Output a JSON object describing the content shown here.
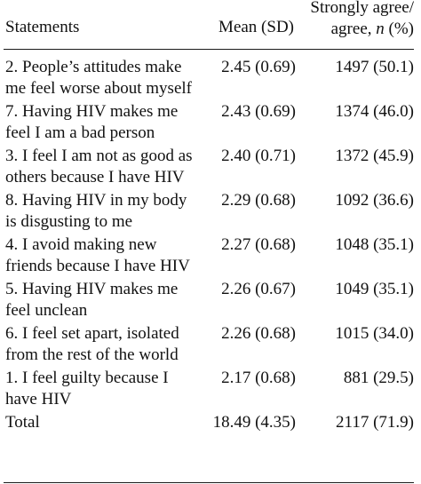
{
  "table": {
    "headers": {
      "statements": "Statements",
      "mean": "Mean (SD)",
      "agree_line1": "Strongly agree/",
      "agree_line2_prefix": "agree, ",
      "agree_line2_italic": "n",
      "agree_line2_suffix": " (%)"
    },
    "rows": [
      {
        "statement": "2. People’s attitudes make me feel worse about myself",
        "mean": "2.45 (0.69)",
        "agree": "1497 (50.1)"
      },
      {
        "statement": "7. Having HIV makes me feel I am a bad person",
        "mean": "2.43 (0.69)",
        "agree": "1374 (46.0)"
      },
      {
        "statement": "3. I feel I am not as good as others because I have HIV",
        "mean": "2.40 (0.71)",
        "agree": "1372 (45.9)"
      },
      {
        "statement": "8. Having HIV in my body is disgusting to me",
        "mean": "2.29 (0.68)",
        "agree": "1092 (36.6)"
      },
      {
        "statement": "4. I avoid making new friends because I have HIV",
        "mean": "2.27 (0.68)",
        "agree": "1048 (35.1)"
      },
      {
        "statement": "5. Having HIV makes me feel unclean",
        "mean": "2.26 (0.67)",
        "agree": "1049 (35.1)"
      },
      {
        "statement": "6. I feel set apart, isolated from the rest of the world",
        "mean": "2.26 (0.68)",
        "agree": "1015 (34.0)"
      },
      {
        "statement": "1. I feel guilty because I have HIV",
        "mean": "2.17 (0.68)",
        "agree": "881 (29.5)"
      }
    ],
    "total": {
      "label": "Total",
      "mean": "18.49 (4.35)",
      "agree": "2117 (71.9)"
    }
  }
}
